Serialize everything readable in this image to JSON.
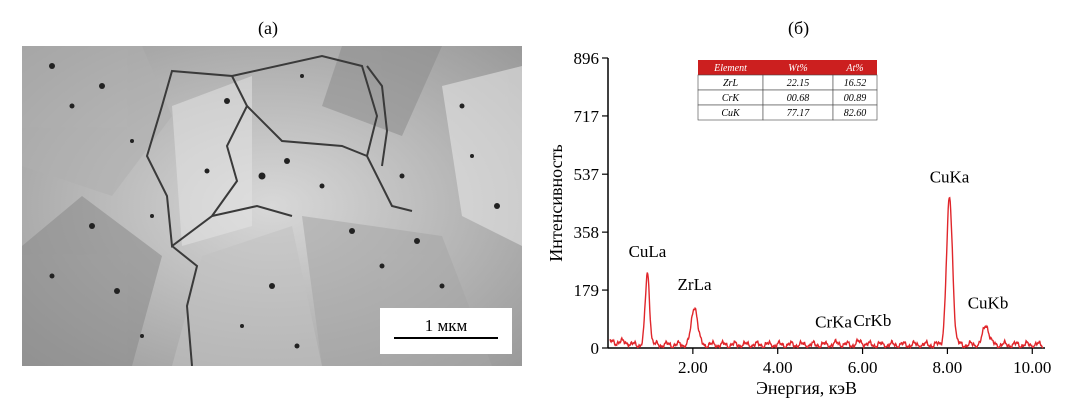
{
  "panels": {
    "left_label": "(a)",
    "right_label": "(б)"
  },
  "micrograph": {
    "scale_bar_label": "1 мкм"
  },
  "chart_data": {
    "type": "line",
    "title": "",
    "xlabel": "Энергия, кэВ",
    "ylabel": "Интенсивность",
    "xlim": [
      0.0,
      10.3
    ],
    "ylim": [
      0,
      896
    ],
    "x_ticks": [
      2.0,
      4.0,
      6.0,
      8.0,
      10.0
    ],
    "x_tick_labels": [
      "2.00",
      "4.00",
      "6.00",
      "8.00",
      "10.00"
    ],
    "y_ticks": [
      0,
      179,
      358,
      537,
      717,
      896
    ],
    "y_tick_labels": [
      "0",
      "179",
      "358",
      "537",
      "717",
      "896"
    ],
    "line_color": "#e0262b",
    "peaks": [
      {
        "label": "CuLa",
        "x": 0.93,
        "y": 232
      },
      {
        "label": "ZrLa",
        "x": 2.04,
        "y": 130
      },
      {
        "label": "CrKa",
        "x": 5.41,
        "y": 14
      },
      {
        "label": "CrKb",
        "x": 5.95,
        "y": 18
      },
      {
        "label": "CuKa",
        "x": 8.05,
        "y": 462
      },
      {
        "label": "CuKb",
        "x": 8.91,
        "y": 72
      }
    ],
    "composition_table": {
      "header_color": "#cc1f1f",
      "headers": [
        "Element",
        "Wt%",
        "At%"
      ],
      "rows": [
        [
          "ZrL",
          "22.15",
          "16.52"
        ],
        [
          "CrK",
          "00.68",
          "00.89"
        ],
        [
          "CuK",
          "77.17",
          "82.60"
        ]
      ]
    }
  }
}
